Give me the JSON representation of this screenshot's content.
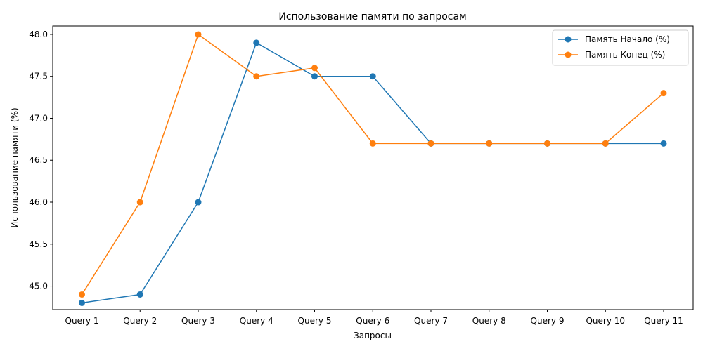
{
  "chart_data": {
    "type": "line",
    "title": "Использование памяти по запросам",
    "xlabel": "Запросы",
    "ylabel": "Использование памяти (%)",
    "categories": [
      "Query 1",
      "Query 2",
      "Query 3",
      "Query 4",
      "Query 5",
      "Query 6",
      "Query 7",
      "Query 8",
      "Query 9",
      "Query 10",
      "Query 11"
    ],
    "ylim": [
      44.72,
      48.1
    ],
    "yticks": [
      45.0,
      45.5,
      46.0,
      46.5,
      47.0,
      47.5,
      48.0
    ],
    "ytick_labels": [
      "45.0",
      "45.5",
      "46.0",
      "46.5",
      "47.0",
      "47.5",
      "48.0"
    ],
    "grid": false,
    "legend_position": "top-right",
    "series": [
      {
        "name": "Память Начало (%)",
        "color": "#1f77b4",
        "marker": "circle",
        "values": [
          44.8,
          44.9,
          46.0,
          47.9,
          47.5,
          47.5,
          46.7,
          46.7,
          46.7,
          46.7,
          46.7
        ]
      },
      {
        "name": "Память Конец (%)",
        "color": "#ff7f0e",
        "marker": "circle",
        "values": [
          44.9,
          46.0,
          48.0,
          47.5,
          47.6,
          46.7,
          46.7,
          46.7,
          46.7,
          46.7,
          47.3
        ]
      }
    ]
  }
}
